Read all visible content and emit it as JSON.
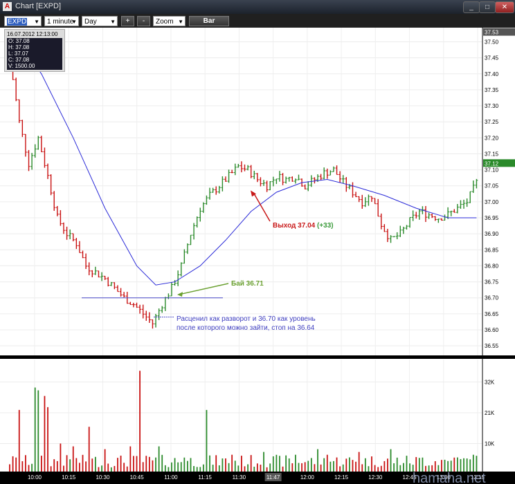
{
  "window": {
    "title": "Chart [EXPD]",
    "min": "_",
    "max": "□",
    "close": "✕"
  },
  "toolbar": {
    "symbol": "EXPD",
    "interval": "1 minute",
    "range": "Day",
    "plus": "+",
    "minus": "-",
    "zoom": "Zoom",
    "chart_type": "Bar"
  },
  "ohlc": {
    "date": "16.07.2012 12:13:00",
    "open": "O: 37.08",
    "high": "H: 37.08",
    "low": "L: 37.07",
    "close": "C: 37.08",
    "volume": "V: 1500.00"
  },
  "annotations": {
    "buy": "Бай 36.71",
    "exit_main": "Выход 37.04",
    "exit_gain": "(+33)",
    "note_line1": "Расценил как разворот и 36.70 как уровень",
    "note_line2": "после которого можно зайти, стоп на 36.64"
  },
  "watermark": "hamaha.net",
  "colors": {
    "up": "#2a8a2a",
    "down": "#c81010",
    "ma": "#2a2ad8",
    "buy": "#6aa030",
    "exit": "#c81818",
    "note": "#4040c0",
    "level": "#4848c8"
  },
  "chart_data": {
    "type": "bar",
    "symbol": "EXPD",
    "interval": "1 minute",
    "price_axis": {
      "ticks": [
        "37.53",
        "37.50",
        "37.45",
        "37.40",
        "37.35",
        "37.30",
        "37.25",
        "37.20",
        "37.15",
        "37.10",
        "37.05",
        "37.00",
        "36.95",
        "36.90",
        "36.85",
        "36.80",
        "36.75",
        "36.70",
        "36.65",
        "36.60",
        "36.55"
      ],
      "range": [
        36.52,
        37.54
      ],
      "current_price_label": "37.12",
      "top_label": "37.53"
    },
    "volume_axis": {
      "ticks": [
        "32K",
        "21K",
        "10K"
      ],
      "range": [
        0,
        40000
      ]
    },
    "time_axis": {
      "ticks": [
        "10:00",
        "10:15",
        "10:30",
        "10:45",
        "11:00",
        "11:15",
        "11:30",
        "11:47",
        "12:00",
        "12:15",
        "12:30",
        "12:45",
        "13:00",
        "13:15"
      ]
    },
    "price_path": [
      [
        0,
        37.45
      ],
      [
        3,
        37.25
      ],
      [
        6,
        37.12
      ],
      [
        9,
        37.2
      ],
      [
        12,
        37.08
      ],
      [
        15,
        36.95
      ],
      [
        18,
        36.9
      ],
      [
        21,
        36.87
      ],
      [
        24,
        36.8
      ],
      [
        27,
        36.78
      ],
      [
        30,
        36.76
      ],
      [
        33,
        36.73
      ],
      [
        36,
        36.7
      ],
      [
        39,
        36.68
      ],
      [
        42,
        36.65
      ],
      [
        45,
        36.62
      ],
      [
        48,
        36.68
      ],
      [
        51,
        36.73
      ],
      [
        54,
        36.8
      ],
      [
        57,
        36.9
      ],
      [
        60,
        36.98
      ],
      [
        63,
        37.02
      ],
      [
        66,
        37.05
      ],
      [
        69,
        37.08
      ],
      [
        72,
        37.11
      ],
      [
        75,
        37.1
      ],
      [
        78,
        37.07
      ],
      [
        81,
        37.05
      ],
      [
        84,
        37.08
      ],
      [
        87,
        37.07
      ],
      [
        90,
        37.08
      ],
      [
        93,
        37.05
      ],
      [
        96,
        37.07
      ],
      [
        99,
        37.09
      ],
      [
        102,
        37.1
      ],
      [
        105,
        37.06
      ],
      [
        108,
        37.03
      ],
      [
        111,
        37.0
      ],
      [
        114,
        37.02
      ],
      [
        117,
        36.93
      ],
      [
        120,
        36.88
      ],
      [
        123,
        36.9
      ],
      [
        126,
        36.94
      ],
      [
        129,
        36.97
      ],
      [
        132,
        36.96
      ],
      [
        135,
        36.95
      ],
      [
        138,
        36.96
      ],
      [
        141,
        36.98
      ],
      [
        144,
        37.0
      ],
      [
        147,
        37.06
      ]
    ],
    "ma_path": [
      [
        0,
        37.54
      ],
      [
        10,
        37.4
      ],
      [
        20,
        37.2
      ],
      [
        30,
        36.98
      ],
      [
        40,
        36.8
      ],
      [
        46,
        36.74
      ],
      [
        52,
        36.75
      ],
      [
        60,
        36.8
      ],
      [
        68,
        36.88
      ],
      [
        76,
        36.97
      ],
      [
        84,
        37.03
      ],
      [
        92,
        37.06
      ],
      [
        100,
        37.07
      ],
      [
        108,
        37.05
      ],
      [
        118,
        37.02
      ],
      [
        128,
        36.98
      ],
      [
        138,
        36.95
      ],
      [
        147,
        36.95
      ]
    ],
    "level": 36.7,
    "buy_price": 36.71,
    "exit_price": 37.04,
    "stop_price": 36.64,
    "volume_spikes": [
      [
        3,
        22000
      ],
      [
        8,
        30000
      ],
      [
        9,
        29000
      ],
      [
        11,
        27000
      ],
      [
        12,
        23000
      ],
      [
        16,
        10000
      ],
      [
        20,
        9000
      ],
      [
        25,
        16000
      ],
      [
        30,
        8000
      ],
      [
        38,
        9000
      ],
      [
        41,
        36000
      ],
      [
        47,
        9000
      ],
      [
        55,
        5000
      ],
      [
        62,
        22000
      ],
      [
        70,
        6000
      ],
      [
        80,
        7000
      ],
      [
        90,
        6000
      ],
      [
        97,
        8000
      ],
      [
        100,
        6000
      ],
      [
        110,
        7000
      ],
      [
        120,
        8000
      ],
      [
        130,
        5000
      ],
      [
        140,
        5000
      ],
      [
        146,
        6000
      ]
    ]
  }
}
